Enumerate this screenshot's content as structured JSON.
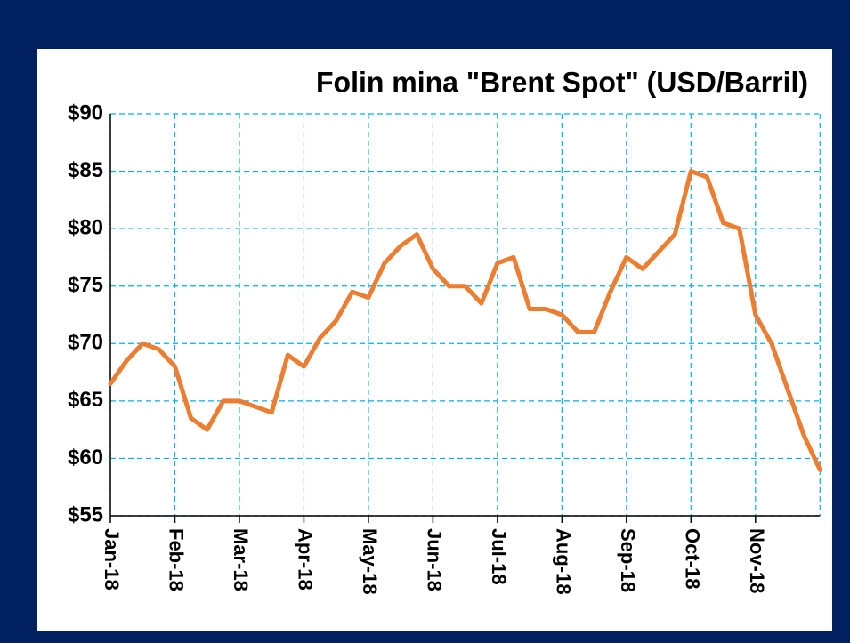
{
  "chart_data": {
    "type": "line",
    "title": "Folin mina \"Brent Spot\" (USD/Barril)",
    "categories": [
      "Jan-18",
      null,
      null,
      null,
      "Feb-18",
      null,
      null,
      null,
      "Mar-18",
      null,
      null,
      null,
      "Apr-18",
      null,
      null,
      null,
      "May-18",
      null,
      null,
      null,
      "Jun-18",
      null,
      null,
      null,
      "Jul-18",
      null,
      null,
      null,
      "Aug-18",
      null,
      null,
      null,
      "Sep-18",
      null,
      null,
      null,
      "Oct-18",
      null,
      null,
      null,
      "Nov-18",
      null,
      null,
      null,
      null
    ],
    "series": [
      {
        "name": "Brent Spot",
        "color": "#ed7d31",
        "values": [
          66.5,
          68.5,
          70,
          69.5,
          68,
          63.5,
          62.5,
          65,
          65,
          64.5,
          64,
          69,
          68,
          70.5,
          72,
          74.5,
          74,
          77,
          78.5,
          79.5,
          76.5,
          75,
          75,
          73.5,
          77,
          77.5,
          73,
          73,
          72.5,
          71,
          71,
          74.5,
          77.5,
          76.5,
          78,
          79.5,
          85,
          84.5,
          80.5,
          80,
          72.5,
          70,
          66,
          62,
          59
        ]
      }
    ],
    "ylim": [
      55,
      90
    ],
    "yticks": [
      {
        "value": 55,
        "label": "$55"
      },
      {
        "value": 60,
        "label": "$60"
      },
      {
        "value": 65,
        "label": "$65"
      },
      {
        "value": 70,
        "label": "$70"
      },
      {
        "value": 75,
        "label": "$75"
      },
      {
        "value": 80,
        "label": "$80"
      },
      {
        "value": 85,
        "label": "$85"
      },
      {
        "value": 90,
        "label": "$90"
      }
    ],
    "grid": true
  }
}
